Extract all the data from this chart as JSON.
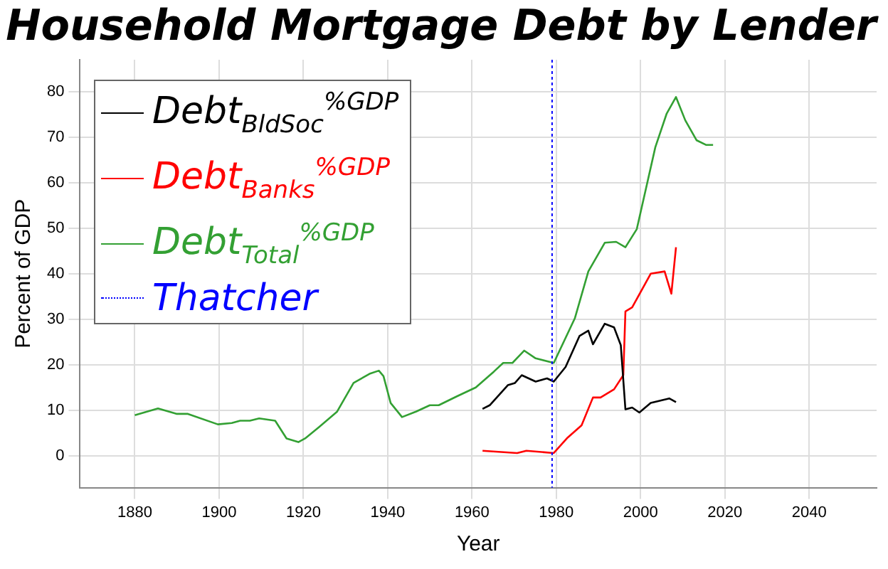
{
  "chart_data": {
    "type": "line",
    "title": "Household Mortgage Debt by Lender",
    "xlabel": "Year",
    "ylabel": "Percent of GDP",
    "xlim": [
      1867,
      2056
    ],
    "xticks": [
      1880,
      1900,
      1920,
      1940,
      1960,
      1980,
      2000,
      2020,
      2040
    ],
    "ylim": [
      -7,
      87
    ],
    "yticks": [
      0,
      10,
      20,
      30,
      40,
      50,
      60,
      70,
      80
    ],
    "grid": true,
    "legend": "top left",
    "line_style": "solid",
    "marker": "none",
    "series": [
      {
        "name": "Debt$_{BldSoc}$$^{%GDP}$",
        "color": "#000000",
        "x": [
          1962.5,
          1964.2,
          1968.5,
          1970.2,
          1971.8,
          1975.1,
          1977.8,
          1979.4,
          1982.2,
          1985.5,
          1987.6,
          1988.7,
          1991.5,
          1993.7,
          1995.3,
          1996.4,
          1998,
          1999.7,
          2002.4,
          2006.8,
          2008.4
        ],
        "values": [
          10.3,
          11.1,
          15.5,
          16.0,
          17.7,
          16.3,
          17.0,
          16.3,
          19.5,
          26.3,
          27.5,
          24.5,
          29.0,
          28.2,
          24.3,
          10.2,
          10.6,
          9.5,
          11.6,
          12.6,
          11.8
        ]
      },
      {
        "name": "Debt$_{Banks}$$^{%GDP}$",
        "color": "#ff0000",
        "x": [
          1962.5,
          1970.7,
          1972.9,
          1979.4,
          1982.7,
          1986,
          1988.7,
          1990.5,
          1993.7,
          1995.9,
          1996.4,
          1998,
          2002.4,
          2005.7,
          2007.3,
          2008.4
        ],
        "values": [
          1.1,
          0.6,
          1.1,
          0.6,
          4.0,
          6.7,
          12.8,
          12.8,
          14.6,
          17.7,
          31.7,
          32.6,
          40.0,
          40.5,
          35.6,
          45.8
        ]
      },
      {
        "name": "Debt$_{Total}$$^{%GDP}$",
        "color": "#33a033",
        "x": [
          1880,
          1885.5,
          1890,
          1892.6,
          1899.7,
          1903,
          1905,
          1907.3,
          1909.5,
          1913.3,
          1916,
          1918.8,
          1920.4,
          1923.7,
          1928,
          1931.9,
          1935.7,
          1937.9,
          1939,
          1940.7,
          1943.4,
          1946.7,
          1950,
          1952.1,
          1956.5,
          1960.9,
          1965.2,
          1967.4,
          1969.6,
          1972.4,
          1975.1,
          1979.4,
          1984.4,
          1987.6,
          1991.5,
          1994.2,
          1996.4,
          1999.1,
          2003.5,
          2006.2,
          2008.4,
          2010.6,
          2013.3,
          2015.5,
          2017.2
        ],
        "values": [
          8.9,
          10.4,
          9.2,
          9.2,
          6.9,
          7.2,
          7.7,
          7.7,
          8.2,
          7.7,
          3.8,
          3.0,
          3.8,
          6.3,
          9.7,
          16.0,
          18.0,
          18.7,
          17.5,
          11.6,
          8.5,
          9.7,
          11.1,
          11.1,
          13.1,
          15.0,
          18.5,
          20.4,
          20.4,
          23.1,
          21.4,
          20.4,
          30.2,
          40.5,
          46.8,
          47.0,
          45.8,
          49.8,
          67.8,
          75.2,
          78.8,
          73.7,
          69.3,
          68.3,
          68.3
        ]
      }
    ],
    "ref_lines": [
      {
        "axis": "x",
        "value": 1979,
        "label": "Thatcher",
        "color": "#0000ff",
        "line_style": "dotted"
      }
    ]
  }
}
